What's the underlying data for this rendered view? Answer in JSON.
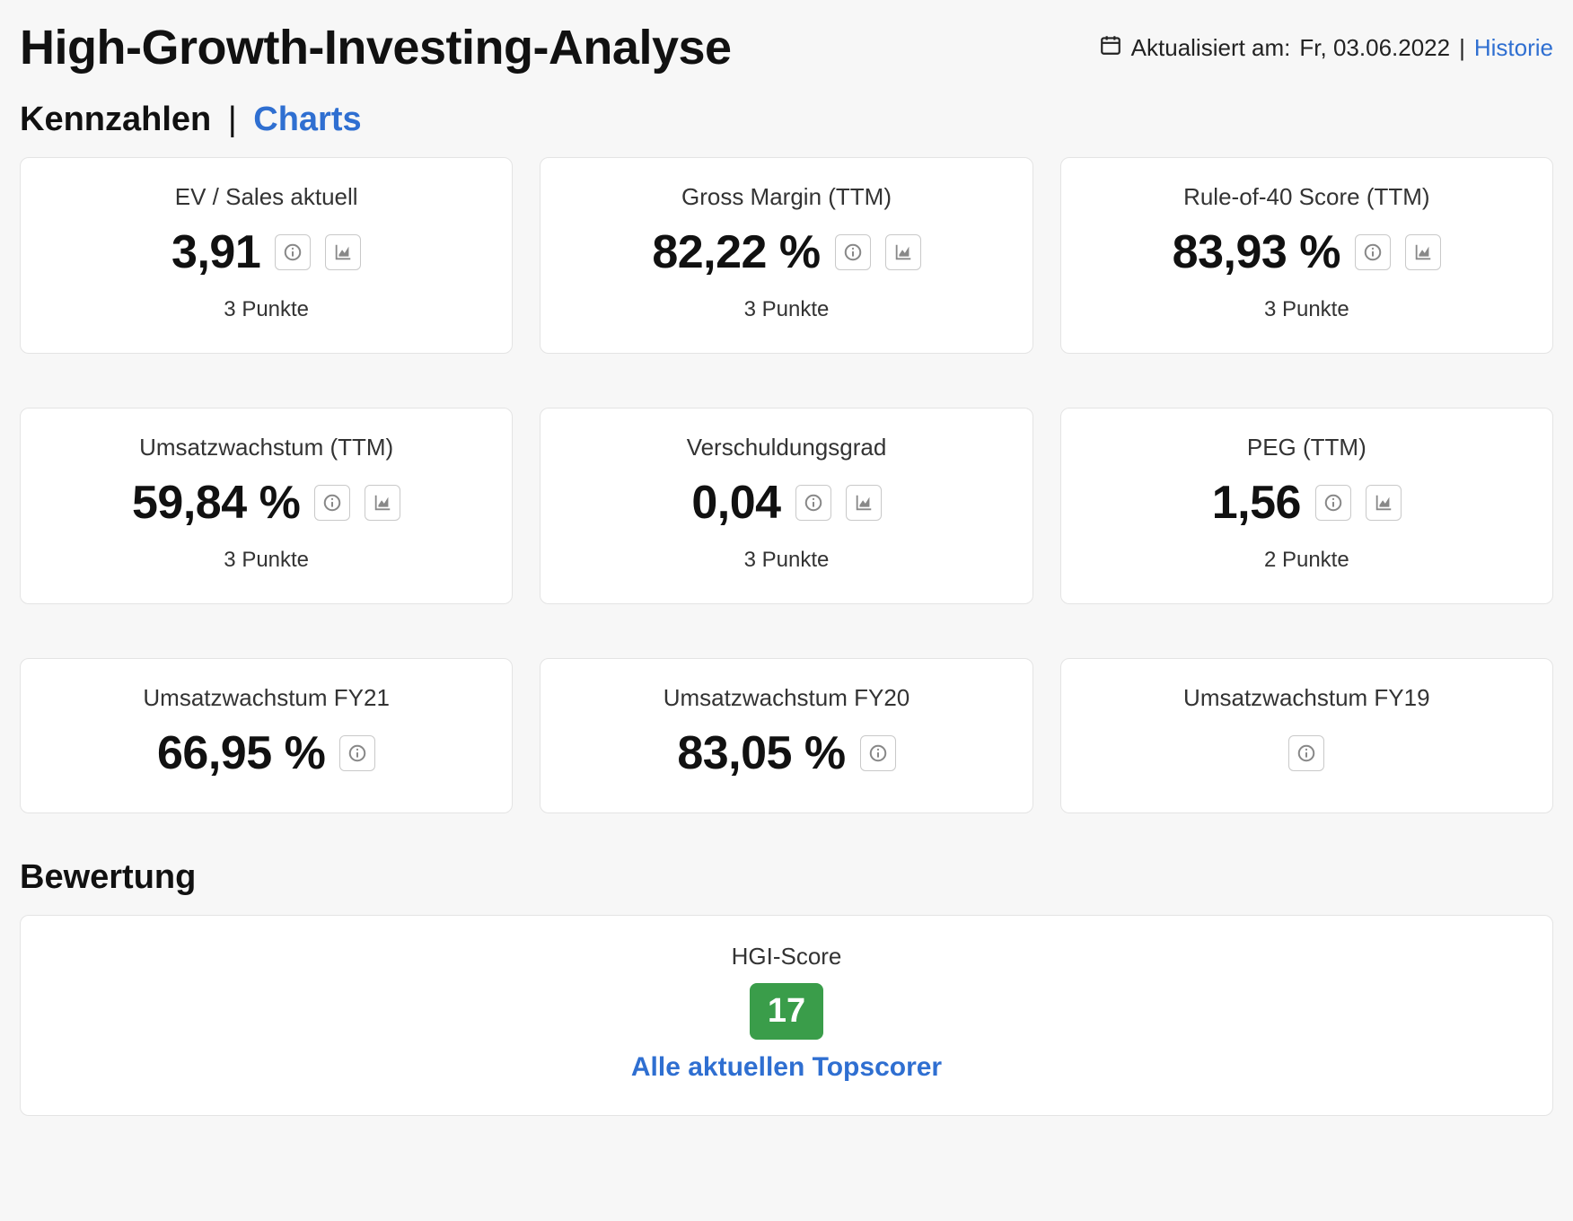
{
  "colors": {
    "background": "#f7f7f7",
    "card_bg": "#ffffff",
    "card_border": "#e4e4e4",
    "text": "#111111",
    "muted": "#888888",
    "link": "#2f6fd1",
    "badge_bg": "#3a9d4a",
    "badge_text": "#ffffff",
    "icon_border": "#c9c9c9"
  },
  "header": {
    "title": "High-Growth-Investing-Analyse",
    "updated_prefix": "Aktualisiert am:",
    "updated_date": "Fr, 03.06.2022",
    "history_link": "Historie"
  },
  "tabs": {
    "active": "Kennzahlen",
    "inactive": "Charts"
  },
  "metrics": [
    {
      "label": "EV / Sales aktuell",
      "value": "3,91",
      "points": "3 Punkte",
      "has_chart": true
    },
    {
      "label": "Gross Margin (TTM)",
      "value": "82,22 %",
      "points": "3 Punkte",
      "has_chart": true
    },
    {
      "label": "Rule-of-40 Score (TTM)",
      "value": "83,93 %",
      "points": "3 Punkte",
      "has_chart": true
    },
    {
      "label": "Umsatzwachstum (TTM)",
      "value": "59,84 %",
      "points": "3 Punkte",
      "has_chart": true
    },
    {
      "label": "Verschuldungsgrad",
      "value": "0,04",
      "points": "3 Punkte",
      "has_chart": true
    },
    {
      "label": "PEG (TTM)",
      "value": "1,56",
      "points": "2 Punkte",
      "has_chart": true
    },
    {
      "label": "Umsatzwachstum FY21",
      "value": "66,95 %",
      "points": "",
      "has_chart": false
    },
    {
      "label": "Umsatzwachstum FY20",
      "value": "83,05 %",
      "points": "",
      "has_chart": false
    },
    {
      "label": "Umsatzwachstum FY19",
      "value": "",
      "points": "",
      "has_chart": false
    }
  ],
  "rating": {
    "section_title": "Bewertung",
    "label": "HGI-Score",
    "score": "17",
    "topscorer_link": "Alle aktuellen Topscorer"
  }
}
